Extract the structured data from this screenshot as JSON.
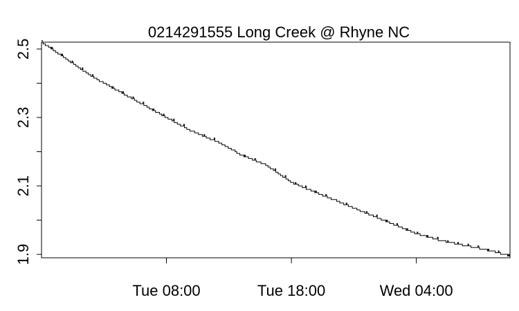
{
  "chart_data": {
    "type": "line",
    "title": "0214291555 Long Creek @ Rhyne NC",
    "xlabel": "",
    "ylabel": "",
    "x_range_hours": [
      -2,
      35.5
    ],
    "x_tick_hours": [
      8,
      18,
      28
    ],
    "x_tick_labels": [
      "Tue 08:00",
      "Tue 18:00",
      "Wed 04:00"
    ],
    "ylim": [
      1.89,
      2.52
    ],
    "y_ticks": [
      1.9,
      2.0,
      2.1,
      2.2,
      2.3,
      2.4,
      2.5
    ],
    "y_tick_labels": [
      "1.9",
      "",
      "2.1",
      "",
      "2.3",
      "",
      "2.5"
    ],
    "grid": false,
    "legend": "none",
    "series": [
      {
        "x": [
          -2,
          0,
          2,
          4,
          6,
          8,
          10,
          12,
          14,
          16,
          18,
          20,
          22,
          24,
          26,
          28,
          30,
          32,
          34,
          35.5
        ],
        "y": [
          2.52,
          2.47,
          2.42,
          2.38,
          2.34,
          2.3,
          2.26,
          2.23,
          2.19,
          2.16,
          2.11,
          2.08,
          2.05,
          2.02,
          1.99,
          1.96,
          1.94,
          1.925,
          1.91,
          1.895
        ]
      }
    ]
  }
}
